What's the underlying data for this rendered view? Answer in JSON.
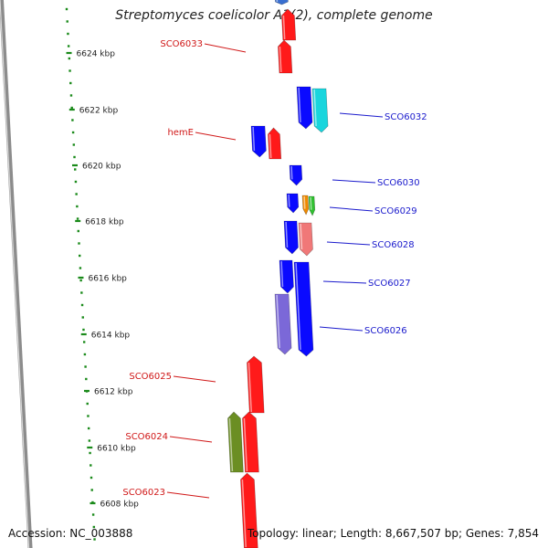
{
  "map": {
    "title": "Streptomyces coelicolor A3(2), complete genome",
    "accession": "Accession: NC_003888",
    "summary": "Topology: linear; Length: 8,667,507 bp; Genes: 7,854"
  },
  "colors": {
    "backbone": "#8c8c8c",
    "tick": "#1a8a1a",
    "tick_label": "#222222",
    "left_label": "#d01818",
    "right_label": "#1a1acc"
  },
  "ticks": [
    {
      "label": "6624 kbp"
    },
    {
      "label": "6622 kbp"
    },
    {
      "label": "6620 kbp"
    },
    {
      "label": "6618 kbp"
    },
    {
      "label": "6616 kbp"
    },
    {
      "label": "6614 kbp"
    },
    {
      "label": "6612 kbp"
    },
    {
      "label": "6610 kbp"
    },
    {
      "label": "6608 kbp"
    }
  ],
  "gene_labels_left": [
    {
      "text": "SCO6033"
    },
    {
      "text": "hemE"
    },
    {
      "text": "SCO6025"
    },
    {
      "text": "SCO6024"
    },
    {
      "text": "SCO6023"
    }
  ],
  "gene_labels_right": [
    {
      "text": "SCO6032"
    },
    {
      "text": "SCO6030"
    },
    {
      "text": "SCO6029"
    },
    {
      "text": "SCO6028"
    },
    {
      "text": "SCO6027"
    },
    {
      "text": "SCO6026"
    }
  ],
  "features": [
    {
      "color": "#3a6fd0",
      "strand": "-"
    },
    {
      "color": "#ff1a1a",
      "strand": "+"
    },
    {
      "color": "#ff1a1a",
      "strand": "+"
    },
    {
      "color": "#0a0aff",
      "strand": "-"
    },
    {
      "color": "#19d5dd",
      "strand": "-"
    },
    {
      "color": "#0a0aff",
      "strand": "-"
    },
    {
      "color": "#ff1a1a",
      "strand": "+"
    },
    {
      "color": "#0a0aff",
      "strand": "-"
    },
    {
      "color": "#0a0aff",
      "strand": "-"
    },
    {
      "color": "#f08a00",
      "strand": "-"
    },
    {
      "color": "#30c030",
      "strand": "-"
    },
    {
      "color": "#0a0aff",
      "strand": "-"
    },
    {
      "color": "#f07878",
      "strand": "-"
    },
    {
      "color": "#0a0aff",
      "strand": "-"
    },
    {
      "color": "#0a0aff",
      "strand": "-"
    },
    {
      "color": "#7b68d8",
      "strand": "-"
    },
    {
      "color": "#ff1a1a",
      "strand": "+"
    },
    {
      "color": "#ff1a1a",
      "strand": "+"
    },
    {
      "color": "#6b8e23",
      "strand": "+"
    },
    {
      "color": "#ff1a1a",
      "strand": "+"
    }
  ]
}
